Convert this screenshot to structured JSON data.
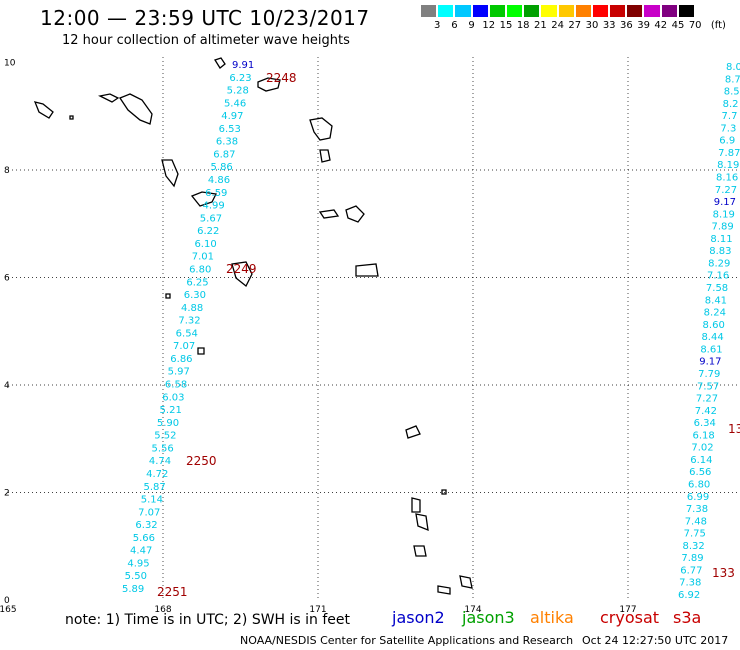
{
  "title": "12:00 — 23:59 UTC 10/23/2017",
  "subtitle": "12 hour collection of altimeter wave heights",
  "legend": {
    "colors": [
      "#808080",
      "#00ffff",
      "#00c8ff",
      "#0000ff",
      "#00c800",
      "#00ff00",
      "#00a000",
      "#ffff00",
      "#ffc800",
      "#ff8000",
      "#ff0000",
      "#c80000",
      "#800000",
      "#c800c8",
      "#800080",
      "#000000"
    ],
    "labels": [
      "3",
      "6",
      "9",
      "12",
      "15",
      "18",
      "21",
      "24",
      "27",
      "30",
      "33",
      "36",
      "39",
      "42",
      "45",
      "70",
      "(ft)"
    ]
  },
  "axes": {
    "x_ticks": [
      "165",
      "168",
      "171",
      "174",
      "177"
    ],
    "y_ticks": [
      "0",
      "2",
      "4",
      "6",
      "8",
      "10"
    ]
  },
  "track1_values": [
    "9.91",
    "6.23",
    "5.28",
    "5.46",
    "4.97",
    "6.53",
    "6.38",
    "6.87",
    "5.86",
    "4.86",
    "6.59",
    "4.99",
    "5.67",
    "6.22",
    "6.10",
    "7.01",
    "6.80",
    "6.25",
    "6.30",
    "4.88",
    "7.32",
    "6.54",
    "7.07",
    "6.86",
    "5.97",
    "6.58",
    "6.03",
    "5.21",
    "5.90",
    "5.52",
    "5.56",
    "4.74",
    "4.72",
    "5.87",
    "5.14",
    "7.07",
    "6.32",
    "5.66",
    "4.47",
    "4.95",
    "5.50",
    "5.89"
  ],
  "track2_values": [
    "8.0",
    "8.7",
    "8.5",
    "8.2",
    "7.7",
    "7.3",
    "6.9",
    "7.87",
    "8.19",
    "8.16",
    "7.27",
    "9.17",
    "8.19",
    "7.89",
    "8.11",
    "8.83",
    "8.29",
    "7.16",
    "7.58",
    "8.41",
    "8.24",
    "8.60",
    "8.44",
    "8.61",
    "9.17",
    "7.79",
    "7.57",
    "7.27",
    "7.42",
    "6.34",
    "6.18",
    "7.02",
    "6.14",
    "6.56",
    "6.80",
    "6.99",
    "7.38",
    "7.48",
    "7.75",
    "8.32",
    "7.89",
    "6.77",
    "7.38",
    "6.92"
  ],
  "time_labels": [
    "2248",
    "2249",
    "2250",
    "2251",
    "13",
    "133"
  ],
  "note": "note: 1) Time is in UTC; 2) SWH is in feet",
  "satellites": [
    "jason2",
    "jason3",
    "altika",
    "cryosat",
    "s3a"
  ],
  "satellite_colors": [
    "#0000c8",
    "#00a000",
    "#ff8000",
    "#c80000",
    "#c80000"
  ],
  "credit": "NOAA/NESDIS Center for Satellite Applications and Research",
  "timestamp": "Oct 24 12:27:50 UTC 2017"
}
